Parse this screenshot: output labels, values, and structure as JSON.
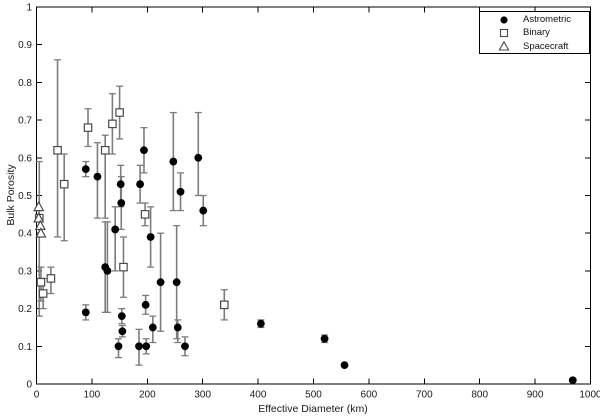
{
  "chart_data": {
    "type": "scatter",
    "title": "",
    "xlabel": "Effective Diameter (km)",
    "ylabel": "Bulk Porosity",
    "xlim": [
      0,
      1000
    ],
    "ylim": [
      0,
      1
    ],
    "xticks": [
      0,
      100,
      200,
      300,
      400,
      500,
      600,
      700,
      800,
      900,
      1000
    ],
    "xtick_labels": [
      "0",
      "100",
      "200",
      "300",
      "400",
      "500",
      "600",
      "700",
      "800",
      "900",
      "1000"
    ],
    "yticks": [
      0,
      0.1,
      0.2,
      0.3,
      0.4,
      0.5,
      0.6,
      0.7,
      0.8,
      0.9,
      1
    ],
    "ytick_labels": [
      "0",
      "0.1",
      "0.2",
      "0.3",
      "0.4",
      "0.5",
      "0.6",
      "0.7",
      "0.8",
      "0.9",
      "1"
    ],
    "grid": false,
    "legend_position": "top-right",
    "errorbar_color": "#7d7d7d",
    "marker_edge_color": "#4a4a4a",
    "marker_fill_color": "#000000",
    "series": [
      {
        "name": "Astrometric",
        "marker": "filled-circle",
        "points": [
          {
            "x": 89,
            "y": 0.57,
            "lo": 0.55,
            "hi": 0.59
          },
          {
            "x": 110,
            "y": 0.55,
            "lo": 0.44,
            "hi": 0.64
          },
          {
            "x": 89,
            "y": 0.19,
            "lo": 0.17,
            "hi": 0.21
          },
          {
            "x": 124,
            "y": 0.31,
            "lo": 0.19,
            "hi": 0.43
          },
          {
            "x": 128,
            "y": 0.3,
            "lo": 0.19,
            "hi": 0.43
          },
          {
            "x": 142,
            "y": 0.41,
            "lo": 0.3,
            "hi": 0.47
          },
          {
            "x": 152,
            "y": 0.53,
            "lo": 0.47,
            "hi": 0.58
          },
          {
            "x": 153,
            "y": 0.48,
            "lo": 0.41,
            "hi": 0.55
          },
          {
            "x": 154,
            "y": 0.18,
            "lo": 0.16,
            "hi": 0.2
          },
          {
            "x": 155,
            "y": 0.14,
            "lo": 0.125,
            "hi": 0.155
          },
          {
            "x": 148,
            "y": 0.1,
            "lo": 0.07,
            "hi": 0.12
          },
          {
            "x": 185,
            "y": 0.1,
            "lo": 0.05,
            "hi": 0.145
          },
          {
            "x": 198,
            "y": 0.1,
            "lo": 0.08,
            "hi": 0.12
          },
          {
            "x": 187,
            "y": 0.53,
            "lo": 0.48,
            "hi": 0.58
          },
          {
            "x": 194,
            "y": 0.62,
            "lo": 0.56,
            "hi": 0.68
          },
          {
            "x": 206,
            "y": 0.39,
            "lo": 0.31,
            "hi": 0.47
          },
          {
            "x": 197,
            "y": 0.21,
            "lo": 0.185,
            "hi": 0.235
          },
          {
            "x": 210,
            "y": 0.15,
            "lo": 0.11,
            "hi": 0.18
          },
          {
            "x": 224,
            "y": 0.27,
            "lo": 0.14,
            "hi": 0.4
          },
          {
            "x": 253,
            "y": 0.27,
            "lo": 0.12,
            "hi": 0.42
          },
          {
            "x": 247,
            "y": 0.59,
            "lo": 0.46,
            "hi": 0.72
          },
          {
            "x": 260,
            "y": 0.51,
            "lo": 0.46,
            "hi": 0.56
          },
          {
            "x": 255,
            "y": 0.15,
            "lo": 0.11,
            "hi": 0.17
          },
          {
            "x": 268,
            "y": 0.1,
            "lo": 0.075,
            "hi": 0.125
          },
          {
            "x": 292,
            "y": 0.6,
            "lo": 0.5,
            "hi": 0.72
          },
          {
            "x": 301,
            "y": 0.46,
            "lo": 0.42,
            "hi": 0.5
          },
          {
            "x": 405,
            "y": 0.16,
            "lo": 0.15,
            "hi": 0.17
          },
          {
            "x": 520,
            "y": 0.12,
            "lo": 0.11,
            "hi": 0.13
          },
          {
            "x": 556,
            "y": 0.05,
            "lo": 0.05,
            "hi": 0.05
          },
          {
            "x": 968,
            "y": 0.01,
            "lo": 0.01,
            "hi": 0.01
          }
        ]
      },
      {
        "name": "Binary",
        "marker": "open-square",
        "points": [
          {
            "x": 5,
            "y": 0.44,
            "lo": 0.18,
            "hi": 0.59
          },
          {
            "x": 8,
            "y": 0.27,
            "lo": 0.22,
            "hi": 0.31
          },
          {
            "x": 12,
            "y": 0.24,
            "lo": 0.2,
            "hi": 0.28
          },
          {
            "x": 26,
            "y": 0.28,
            "lo": 0.24,
            "hi": 0.31
          },
          {
            "x": 38,
            "y": 0.62,
            "lo": 0.39,
            "hi": 0.86
          },
          {
            "x": 50,
            "y": 0.53,
            "lo": 0.38,
            "hi": 0.61
          },
          {
            "x": 93,
            "y": 0.68,
            "lo": 0.63,
            "hi": 0.73
          },
          {
            "x": 124,
            "y": 0.62,
            "lo": 0.44,
            "hi": 0.66
          },
          {
            "x": 137,
            "y": 0.69,
            "lo": 0.61,
            "hi": 0.77
          },
          {
            "x": 150,
            "y": 0.72,
            "lo": 0.65,
            "hi": 0.79
          },
          {
            "x": 157,
            "y": 0.31,
            "lo": 0.23,
            "hi": 0.39
          },
          {
            "x": 196,
            "y": 0.45,
            "lo": 0.42,
            "hi": 0.48
          },
          {
            "x": 339,
            "y": 0.21,
            "lo": 0.17,
            "hi": 0.25
          }
        ]
      },
      {
        "name": "Spacecraft",
        "marker": "open-triangle",
        "points": [
          {
            "x": 4,
            "y": 0.47,
            "lo": 0.47,
            "hi": 0.47
          },
          {
            "x": 4,
            "y": 0.44,
            "lo": 0.44,
            "hi": 0.44
          },
          {
            "x": 7,
            "y": 0.42,
            "lo": 0.42,
            "hi": 0.42
          },
          {
            "x": 8,
            "y": 0.4,
            "lo": 0.4,
            "hi": 0.4
          }
        ]
      }
    ]
  }
}
